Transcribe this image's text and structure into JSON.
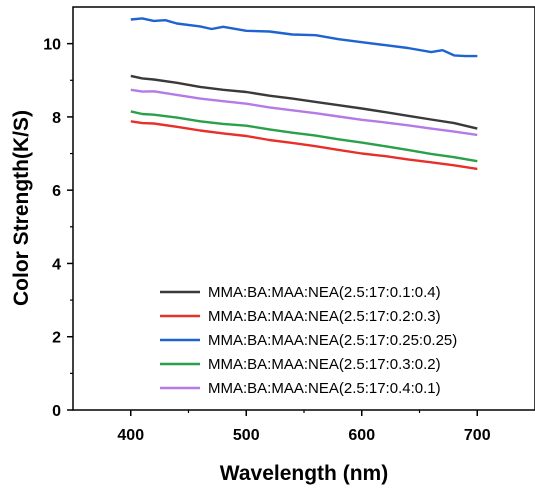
{
  "chart_data": {
    "type": "line",
    "xlabel": "Wavelength (nm)",
    "ylabel": "Color Strength(K/S)",
    "xlim": [
      350,
      750
    ],
    "ylim": [
      0,
      11
    ],
    "xticks": [
      400,
      500,
      600,
      700
    ],
    "yticks": [
      0,
      2,
      4,
      6,
      8,
      10
    ],
    "grid": false,
    "legend_position": "bottom-right",
    "series": [
      {
        "name": "MMA:BA:MAA:NEA(2.5:17:0.1:0.4)",
        "color": "#3a3a3a",
        "x": [
          400,
          410,
          420,
          440,
          460,
          480,
          500,
          520,
          540,
          560,
          580,
          600,
          620,
          640,
          660,
          680,
          700
        ],
        "y": [
          9.12,
          9.05,
          9.02,
          8.93,
          8.82,
          8.74,
          8.68,
          8.58,
          8.5,
          8.41,
          8.32,
          8.23,
          8.13,
          8.03,
          7.93,
          7.83,
          7.68
        ]
      },
      {
        "name": "MMA:BA:MAA:NEA(2.5:17:0.2:0.3)",
        "color": "#e8302b",
        "x": [
          400,
          410,
          420,
          440,
          460,
          480,
          500,
          520,
          540,
          560,
          580,
          600,
          620,
          640,
          660,
          680,
          700
        ],
        "y": [
          7.88,
          7.83,
          7.82,
          7.73,
          7.63,
          7.55,
          7.48,
          7.37,
          7.29,
          7.2,
          7.1,
          7.0,
          6.93,
          6.84,
          6.76,
          6.68,
          6.58
        ]
      },
      {
        "name": "MMA:BA:MAA:NEA(2.5:17:0.25:0.25)",
        "color": "#1f63d0",
        "x": [
          400,
          410,
          420,
          430,
          440,
          460,
          470,
          480,
          500,
          520,
          540,
          560,
          580,
          600,
          620,
          640,
          660,
          670,
          680,
          690,
          700
        ],
        "y": [
          10.66,
          10.69,
          10.62,
          10.64,
          10.55,
          10.47,
          10.4,
          10.46,
          10.35,
          10.33,
          10.25,
          10.23,
          10.12,
          10.04,
          9.96,
          9.88,
          9.77,
          9.82,
          9.68,
          9.66,
          9.66
        ]
      },
      {
        "name": "MMA:BA:MAA:NEA(2.5:17:0.3:0.2)",
        "color": "#2aa04a",
        "x": [
          400,
          410,
          420,
          440,
          460,
          480,
          500,
          520,
          540,
          560,
          580,
          600,
          620,
          640,
          660,
          680,
          700
        ],
        "y": [
          8.15,
          8.08,
          8.06,
          7.98,
          7.88,
          7.81,
          7.76,
          7.66,
          7.57,
          7.49,
          7.39,
          7.3,
          7.2,
          7.1,
          6.99,
          6.9,
          6.79
        ]
      },
      {
        "name": "MMA:BA:MAA:NEA(2.5:17:0.4:0.1)",
        "color": "#b57ae6",
        "x": [
          400,
          410,
          420,
          440,
          460,
          480,
          500,
          520,
          540,
          560,
          580,
          600,
          620,
          640,
          660,
          680,
          700
        ],
        "y": [
          8.74,
          8.69,
          8.7,
          8.6,
          8.5,
          8.43,
          8.36,
          8.26,
          8.18,
          8.1,
          8.01,
          7.92,
          7.85,
          7.77,
          7.68,
          7.6,
          7.51
        ]
      }
    ]
  }
}
